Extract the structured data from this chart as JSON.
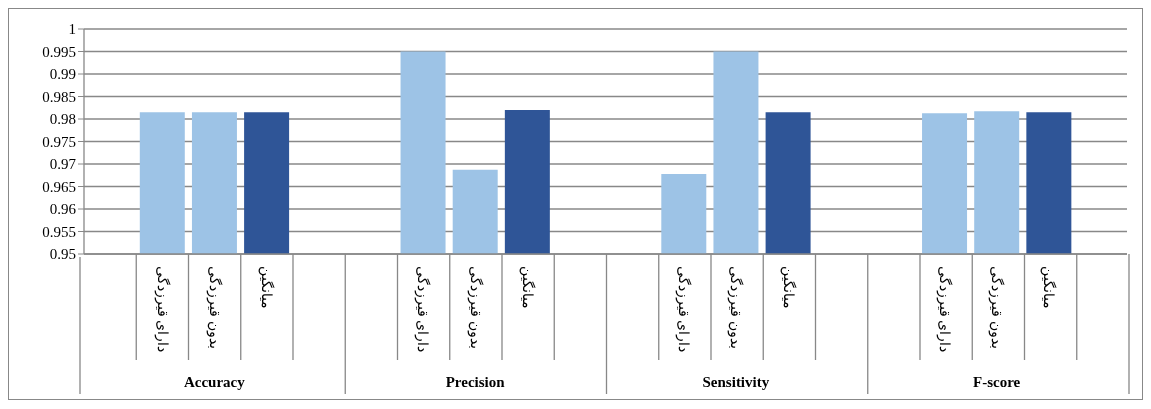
{
  "chart_data": {
    "type": "bar",
    "categories": [
      null,
      "دارای قیرزدگی",
      "بدون قیرزدگی",
      "میانگین",
      null,
      null,
      "دارای قیرزدگی",
      "بدون قیرزدگی",
      "میانگین",
      null,
      null,
      "دارای قیرزدگی",
      "بدون قیرزدگی",
      "میانگین",
      null,
      null,
      "دارای قیرزدگی",
      "بدون قیرزدگی",
      "میانگین",
      null
    ],
    "values": [
      null,
      0.9815,
      0.9815,
      0.9815,
      null,
      null,
      0.995,
      0.9687,
      0.982,
      null,
      null,
      0.9678,
      0.995,
      0.9815,
      null,
      null,
      0.9813,
      0.9817,
      0.9815,
      null
    ],
    "colors": [
      "#9dc3e6",
      "#9dc3e6",
      "#9dc3e6",
      "#2f5597",
      "#9dc3e6",
      "#9dc3e6",
      "#9dc3e6",
      "#9dc3e6",
      "#2f5597",
      "#9dc3e6",
      "#9dc3e6",
      "#9dc3e6",
      "#9dc3e6",
      "#2f5597",
      "#9dc3e6",
      "#9dc3e6",
      "#9dc3e6",
      "#9dc3e6",
      "#2f5597",
      "#9dc3e6"
    ],
    "annotations": [
      "Accuracy",
      "Precision",
      "Sensitivity",
      "F-score"
    ],
    "ylim": [
      0.95,
      1
    ],
    "yticks": [
      0.95,
      0.955,
      0.96,
      0.965,
      0.97,
      0.975,
      0.98,
      0.985,
      0.99,
      0.995,
      1
    ],
    "grid": "y",
    "legend": false
  }
}
